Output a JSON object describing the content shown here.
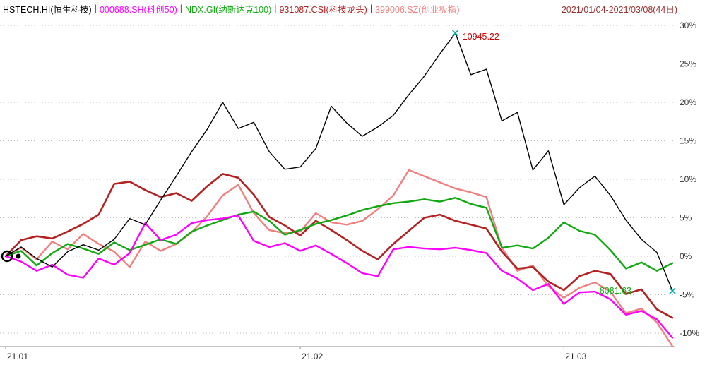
{
  "legend": {
    "separator": "|",
    "items": [
      {
        "code": "HSTECH.HI",
        "label": "HSTECH.HI(恒生科技)",
        "color": "#000000"
      },
      {
        "code": "000688.SH",
        "label": "000688.SH(科创50)",
        "color": "#ff00ff"
      },
      {
        "code": "NDX.GI",
        "label": "NDX.GI(纳斯达克100)",
        "color": "#11a811"
      },
      {
        "code": "931087.CSI",
        "label": "931087.CSI(科技龙头)",
        "color": "#b22222"
      },
      {
        "code": "399006.SZ",
        "label": "399006.SZ(创业板指)",
        "color": "#f08080"
      }
    ],
    "date_range": {
      "text": "2021/01/04-2021/03/08(44日)",
      "color": "#993333"
    }
  },
  "chart_data": {
    "type": "line",
    "title": "",
    "legend_position": "top",
    "grid": "horizontal",
    "x_axis": {
      "tick_labels": [
        "21.01",
        "21.02",
        "21.03"
      ],
      "tick_days": [
        1,
        20,
        37
      ],
      "total_days": 44
    },
    "y_axis": {
      "ticks": [
        30,
        25,
        20,
        15,
        10,
        5,
        0,
        -5,
        -10
      ],
      "unit": "%",
      "range": [
        -12.5,
        30.5
      ]
    },
    "series": [
      {
        "code": "HSTECH.HI",
        "name": "HSTECH.HI(恒生科技)",
        "color": "#000000",
        "line_width": 1.4,
        "values": [
          0,
          1.2,
          -0.3,
          -1.4,
          0.6,
          1.5,
          0.8,
          2.2,
          4.9,
          4.1,
          7.3,
          10.4,
          13.6,
          16.5,
          20.0,
          16.6,
          17.4,
          13.6,
          11.3,
          11.6,
          14.0,
          19.5,
          17.3,
          15.6,
          16.8,
          18.3,
          21.0,
          23.4,
          26.3,
          29.0,
          23.6,
          24.3,
          17.6,
          18.7,
          11.2,
          13.7,
          6.7,
          8.9,
          10.4,
          7.9,
          4.7,
          2.2,
          0.5,
          -4.5
        ]
      },
      {
        "code": "000688.SH",
        "name": "000688.SH(科创50)",
        "color": "#ff00ff",
        "line_width": 2.4,
        "values": [
          0,
          -0.7,
          -1.9,
          -1.1,
          -2.4,
          -2.8,
          -0.3,
          -1.1,
          0.4,
          4.3,
          2.1,
          2.8,
          4.3,
          4.7,
          4.9,
          5.3,
          2.0,
          1.2,
          1.7,
          0.7,
          1.4,
          0.3,
          -0.9,
          -2.2,
          -2.6,
          0.9,
          1.2,
          1.0,
          0.9,
          1.1,
          0.8,
          0.4,
          -1.9,
          -2.9,
          -4.4,
          -3.6,
          -6.2,
          -4.7,
          -4.6,
          -5.6,
          -7.6,
          -7.1,
          -8.2,
          -10.6
        ]
      },
      {
        "code": "NDX.GI",
        "name": "NDX.GI(纳斯达克100)",
        "color": "#11a811",
        "line_width": 2.4,
        "values": [
          0,
          0.7,
          -1.2,
          0.4,
          1.6,
          1.0,
          0.3,
          1.8,
          0.8,
          1.5,
          2.2,
          1.6,
          3.2,
          4.0,
          4.7,
          5.4,
          5.8,
          4.6,
          2.8,
          3.4,
          4.2,
          4.7,
          5.3,
          6.0,
          6.5,
          6.9,
          7.1,
          7.4,
          7.1,
          7.6,
          6.8,
          6.3,
          1.1,
          1.4,
          1.0,
          2.4,
          4.4,
          3.3,
          2.8,
          0.8,
          -1.6,
          -0.8,
          -1.9,
          -0.9
        ]
      },
      {
        "code": "931087.CSI",
        "name": "931087.CSI(科技龙头)",
        "color": "#b22222",
        "line_width": 2.6,
        "values": [
          0,
          2.1,
          2.6,
          2.3,
          3.2,
          4.2,
          5.4,
          9.4,
          9.7,
          8.6,
          7.7,
          8.2,
          7.2,
          9.1,
          10.7,
          10.2,
          8.0,
          5.1,
          4.0,
          2.7,
          4.6,
          3.4,
          2.1,
          0.7,
          -0.4,
          1.6,
          3.3,
          5.0,
          5.4,
          4.6,
          4.1,
          3.6,
          0.6,
          -1.6,
          -1.4,
          -3.3,
          -4.4,
          -2.6,
          -1.9,
          -2.3,
          -4.9,
          -4.3,
          -6.9,
          -8.0
        ]
      },
      {
        "code": "399006.SZ",
        "name": "399006.SZ(创业板指)",
        "color": "#f08080",
        "line_width": 2.4,
        "values": [
          0,
          1.1,
          -0.4,
          1.9,
          0.9,
          2.9,
          1.6,
          0.6,
          -1.4,
          1.9,
          0.7,
          1.6,
          3.1,
          5.2,
          7.9,
          9.3,
          5.6,
          3.4,
          3.0,
          3.2,
          5.6,
          4.4,
          4.1,
          4.6,
          6.1,
          7.9,
          11.2,
          10.4,
          9.6,
          8.8,
          8.3,
          7.7,
          1.1,
          -1.9,
          -1.2,
          -3.9,
          -5.4,
          -4.1,
          -3.4,
          -4.6,
          -7.4,
          -6.8,
          -8.6,
          -11.7
        ]
      }
    ],
    "annotations": {
      "peak": {
        "series": "HSTECH.HI",
        "point": "max",
        "text": "10945.22",
        "color": "#cc0000",
        "marker_color": "#00aaaa"
      },
      "end": {
        "series": "HSTECH.HI",
        "point": "last",
        "text": "8081.63",
        "color": "#11a811",
        "marker_color": "#00aaaa"
      }
    }
  }
}
